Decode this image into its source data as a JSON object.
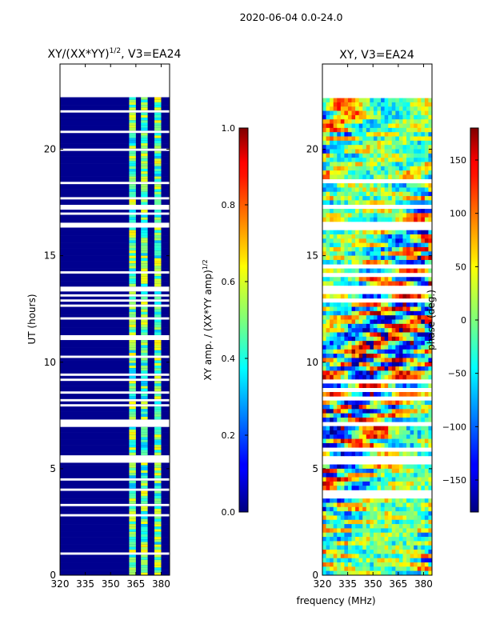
{
  "suptitle": "2020-06-04 0.0-24.0",
  "xlabel_shared": "frequency (MHz)",
  "chart_data": [
    {
      "type": "heatmap",
      "title": "XY/(XX*YY)",
      "title_sup": "1/2",
      "title_suffix": ", V3=EA24",
      "xlabel": "",
      "ylabel": "UT (hours)",
      "xlim": [
        320,
        385
      ],
      "ylim": [
        0,
        24
      ],
      "xticks": [
        320,
        335,
        350,
        365,
        380
      ],
      "yticks": [
        0,
        5,
        10,
        15,
        20
      ],
      "rfi_channel_bands": [
        [
          361,
          365
        ],
        [
          368,
          372
        ],
        [
          376,
          380
        ]
      ],
      "missing_time_ranges": [
        [
          22.4,
          24.0
        ],
        [
          17.2,
          17.4
        ],
        [
          16.3,
          16.6
        ],
        [
          13.3,
          13.5
        ],
        [
          7.0,
          7.3
        ],
        [
          5.3,
          5.6
        ]
      ],
      "colorbar": {
        "label": "XY amp. / (XX*YY amp)",
        "label_sup": "1/2",
        "range": [
          0.0,
          1.0
        ],
        "ticks": [
          "0.0",
          "0.2",
          "0.4",
          "0.6",
          "0.8",
          "1.0"
        ],
        "tick_values": [
          0.0,
          0.2,
          0.4,
          0.6,
          0.8,
          1.0
        ],
        "colormap": "jet"
      }
    },
    {
      "type": "heatmap",
      "title": "XY, V3=EA24",
      "xlabel": "frequency (MHz)",
      "ylabel": "",
      "xlim": [
        320,
        385
      ],
      "ylim": [
        0,
        24
      ],
      "xticks": [
        320,
        335,
        350,
        365,
        380
      ],
      "yticks": [
        0,
        5,
        10,
        15,
        20
      ],
      "missing_time_ranges": [
        [
          22.4,
          24.0
        ],
        [
          17.2,
          17.4
        ],
        [
          16.3,
          16.6
        ],
        [
          13.3,
          13.5
        ],
        [
          7.0,
          7.3
        ],
        [
          5.3,
          5.6
        ]
      ],
      "colorbar": {
        "label": "phase (deg.)",
        "range": [
          -180,
          180
        ],
        "ticks": [
          "−150",
          "−100",
          "−50",
          "0",
          "50",
          "100",
          "150"
        ],
        "tick_values": [
          -150,
          -100,
          -50,
          0,
          50,
          100,
          150
        ],
        "colormap": "jet"
      }
    }
  ]
}
